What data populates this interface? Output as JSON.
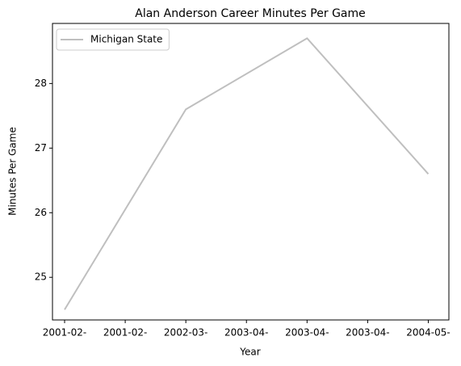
{
  "chart_data": {
    "type": "line",
    "title": "Alan Anderson  Career Minutes Per Game",
    "xlabel": "Year",
    "ylabel": "Minutes Per Game",
    "x": [
      0,
      1,
      2,
      3
    ],
    "series": [
      {
        "name": "Michigan State",
        "color": "#bfbfbf",
        "values": [
          24.5,
          27.6,
          28.7,
          26.6
        ]
      }
    ],
    "xlim": [
      -0.1,
      3.17
    ],
    "xticks": [
      {
        "value": 0,
        "label": "2001-02-"
      },
      {
        "value": 0.5,
        "label": "2001-02-"
      },
      {
        "value": 1,
        "label": "2002-03-"
      },
      {
        "value": 1.5,
        "label": "2003-04-"
      },
      {
        "value": 2,
        "label": "2003-04-"
      },
      {
        "value": 2.5,
        "label": "2003-04-"
      },
      {
        "value": 3,
        "label": "2004-05-"
      }
    ],
    "ylim": [
      24.34,
      28.93
    ],
    "yticks": [
      25,
      26,
      27,
      28
    ],
    "legend": "upper left",
    "grid": false
  }
}
